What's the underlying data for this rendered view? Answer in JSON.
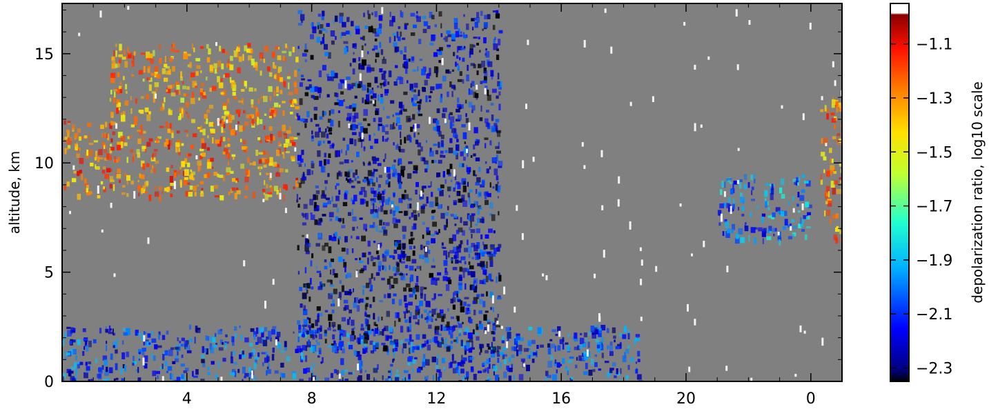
{
  "chart_data": {
    "type": "heatmap",
    "title": "",
    "ylabel": "altitude, km",
    "xlabel": "",
    "x_ticks": [
      "4",
      "8",
      "12",
      "16",
      "20",
      "0"
    ],
    "ylim": [
      0,
      17.3
    ],
    "y_ticks": [
      0,
      5,
      10,
      15
    ],
    "background_color": "#808080",
    "contour_color": "#ffffff",
    "colorbar": {
      "label": "depolarization ratio, log10 scale",
      "scale": "log10",
      "range": [
        -2.35,
        -0.95
      ],
      "ticks": [
        "−1.1",
        "−1.3",
        "−1.5",
        "−1.7",
        "−1.9",
        "−2.1",
        "−2.3"
      ],
      "tick_values": [
        -1.1,
        -1.3,
        -1.5,
        -1.7,
        -1.9,
        -2.1,
        -2.3
      ],
      "colormap": "jet"
    },
    "features": [
      {
        "name": "boundary-layer-aerosol",
        "x_hours": [
          0,
          18.5
        ],
        "altitude_km": [
          0,
          2.6
        ],
        "log_depol": -2.1
      },
      {
        "name": "cirrus-band-lower",
        "x_hours": [
          0,
          7.5
        ],
        "altitude_km": [
          8.5,
          12
        ],
        "log_depol": -1.3
      },
      {
        "name": "cirrus-band-upper",
        "x_hours": [
          1.5,
          7.5
        ],
        "altitude_km": [
          12,
          15.5
        ],
        "log_depol": -1.35
      },
      {
        "name": "fall-streak",
        "x_hours": [
          7.5,
          14
        ],
        "altitude_km": [
          1.5,
          17
        ],
        "log_depol": -2.2
      },
      {
        "name": "mid-level-cloud",
        "x_hours": [
          21,
          24
        ],
        "altitude_km": [
          6.5,
          9.5
        ],
        "log_depol": -2.0
      },
      {
        "name": "cirrus-right-edge",
        "x_hours": [
          24.3,
          25
        ],
        "altitude_km": [
          6.5,
          13
        ],
        "log_depol": -1.3
      }
    ]
  }
}
